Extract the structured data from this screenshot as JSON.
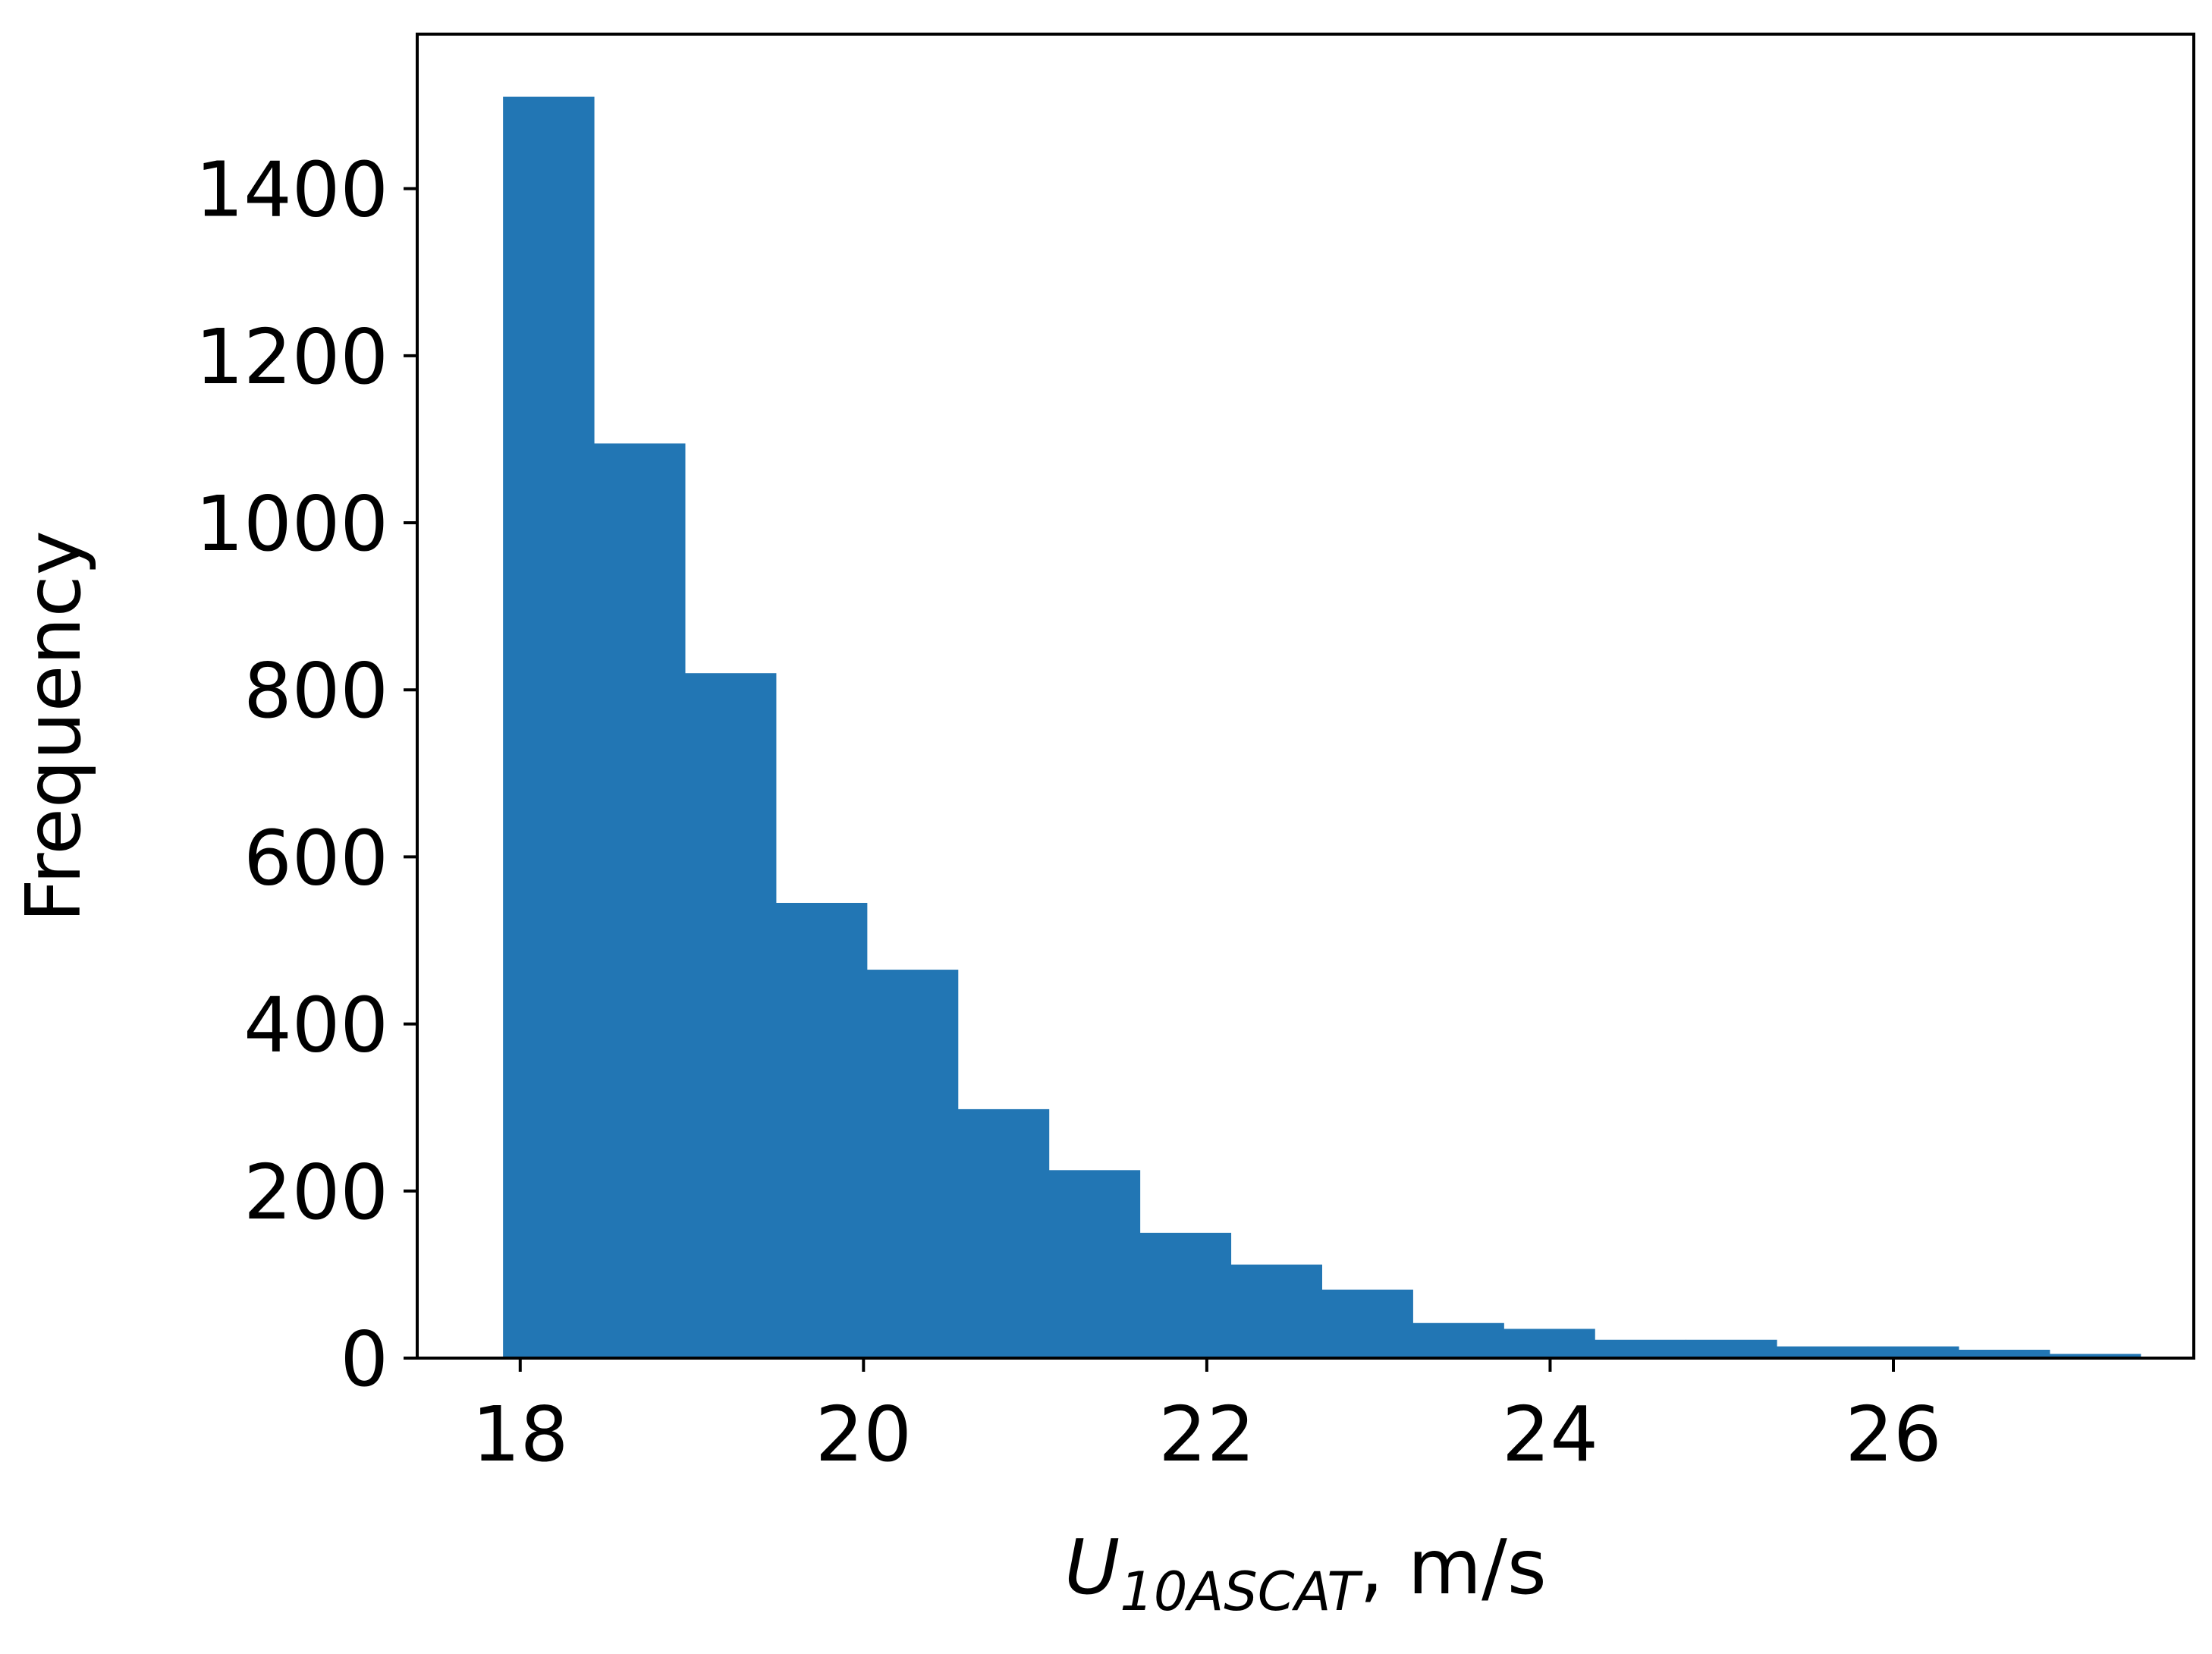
{
  "chart_data": {
    "type": "bar",
    "subtype": "histogram",
    "bin_edges": [
      17.9,
      18.43,
      18.96,
      19.49,
      20.02,
      20.55,
      21.08,
      21.61,
      22.14,
      22.67,
      23.2,
      23.73,
      24.26,
      24.79,
      25.32,
      25.85,
      26.38,
      26.91,
      27.44
    ],
    "values": [
      1510,
      1095,
      820,
      545,
      465,
      298,
      225,
      150,
      112,
      82,
      42,
      35,
      22,
      22,
      14,
      14,
      10,
      5
    ],
    "color": "#2276b4",
    "xlabel": {
      "main": "U",
      "subscript": "10ASCAT",
      "unit": ", m/s"
    },
    "ylabel": "Frequency",
    "xlim": [
      17.4,
      27.75
    ],
    "ylim": [
      0,
      1585
    ],
    "xticks": [
      18,
      20,
      22,
      24,
      26
    ],
    "xtick_labels": [
      "18",
      "20",
      "22",
      "24",
      "26"
    ],
    "yticks": [
      0,
      200,
      400,
      600,
      800,
      1000,
      1200,
      1400
    ],
    "ytick_labels": [
      "0",
      "200",
      "400",
      "600",
      "800",
      "1000",
      "1200",
      "1400"
    ],
    "grid": false,
    "legend": "none"
  }
}
